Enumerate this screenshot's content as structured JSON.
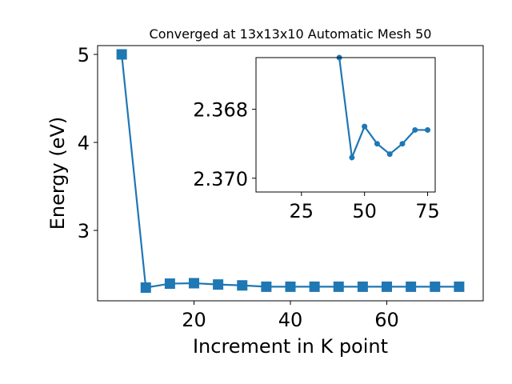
{
  "chart_data": [
    {
      "type": "line",
      "title": "Converged at 13x13x10 Automatic Mesh 50",
      "xlabel": "Increment in K point",
      "ylabel": "Energy (eV)",
      "xlim": [
        0,
        80
      ],
      "ylim": [
        2.2,
        5.1
      ],
      "xticks": [
        20,
        40,
        60
      ],
      "yticks": [
        3,
        4,
        5
      ],
      "marker": "square",
      "color": "#1f77b4",
      "grid": false,
      "series": [
        {
          "x": [
            5,
            10,
            15,
            20,
            25,
            30,
            35,
            40,
            45,
            50,
            55,
            60,
            65,
            70,
            75
          ],
          "values": [
            5.0,
            2.35,
            2.395,
            2.4,
            2.385,
            2.375,
            2.36,
            2.36,
            2.36,
            2.36,
            2.36,
            2.36,
            2.36,
            2.36,
            2.36
          ]
        }
      ]
    },
    {
      "type": "line",
      "title": "",
      "xlabel": "",
      "ylabel": "",
      "xlim": [
        7,
        78
      ],
      "ylim": [
        2.3704,
        2.3665
      ],
      "y_inverted": true,
      "xticks": [
        25,
        50,
        75
      ],
      "yticks": [
        2.368,
        2.37
      ],
      "ytick_labels": [
        "2.368",
        "2.370"
      ],
      "marker": "circle",
      "color": "#1f77b4",
      "grid": false,
      "series": [
        {
          "x": [
            40,
            45,
            50,
            55,
            60,
            65,
            70,
            75
          ],
          "values": [
            2.3665,
            2.3694,
            2.3685,
            2.369,
            2.3693,
            2.369,
            2.3686,
            2.3686
          ]
        }
      ]
    }
  ]
}
